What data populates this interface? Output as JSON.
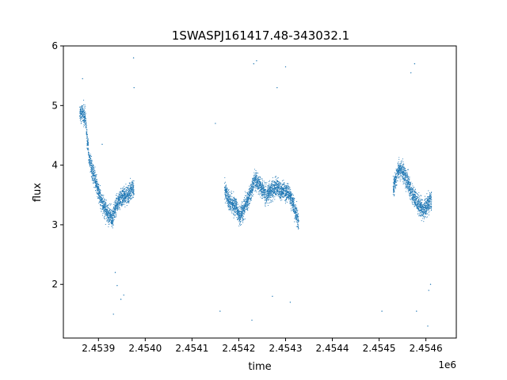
{
  "chart_data": {
    "type": "scatter",
    "title": "1SWASPJ161417.48-343032.1",
    "xlabel": "time",
    "ylabel": "flux",
    "x_offset_label": "1e6",
    "xlim": [
      2453825,
      2454665
    ],
    "ylim": [
      1.1,
      6.0
    ],
    "x_ticks": [
      2453900,
      2454000,
      2454100,
      2454200,
      2454300,
      2454400,
      2454500,
      2454600
    ],
    "x_tick_labels": [
      "2.4539",
      "2.4540",
      "2.4541",
      "2.4542",
      "2.4543",
      "2.4544",
      "2.4545",
      "2.4546"
    ],
    "y_ticks": [
      2,
      3,
      4,
      5,
      6
    ],
    "y_tick_labels": [
      "2",
      "3",
      "4",
      "5",
      "6"
    ],
    "grid": false,
    "legend": "none",
    "marker_color": "#1f77b4",
    "series": [
      {
        "segments": [
          {
            "x": [
              2453860,
              2453866,
              2453872,
              2453880,
              2453886,
              2453893,
              2453900,
              2453906,
              2453912,
              2453918,
              2453924,
              2453930,
              2453936,
              2453942,
              2453948,
              2453954,
              2453960,
              2453966,
              2453972,
              2453976
            ],
            "y": [
              4.85,
              4.88,
              4.8,
              4.1,
              3.92,
              3.78,
              3.55,
              3.4,
              3.3,
              3.22,
              3.15,
              3.1,
              3.3,
              3.38,
              3.45,
              3.5,
              3.48,
              3.55,
              3.6,
              3.58
            ]
          },
          {
            "x": [
              2454170,
              2454178,
              2454186,
              2454194,
              2454202,
              2454210,
              2454218,
              2454226,
              2454234,
              2454242,
              2454250,
              2454258,
              2454266,
              2454274,
              2454282,
              2454290,
              2454298,
              2454306,
              2454314,
              2454322,
              2454328
            ],
            "y": [
              3.6,
              3.42,
              3.35,
              3.3,
              3.15,
              3.25,
              3.4,
              3.55,
              3.75,
              3.7,
              3.6,
              3.5,
              3.55,
              3.6,
              3.65,
              3.55,
              3.6,
              3.52,
              3.4,
              3.2,
              3.05
            ]
          },
          {
            "x": [
              2454530,
              2454540,
              2454548,
              2454556,
              2454564,
              2454572,
              2454580,
              2454588,
              2454596,
              2454604,
              2454612
            ],
            "y": [
              3.6,
              3.9,
              3.95,
              3.8,
              3.65,
              3.5,
              3.4,
              3.3,
              3.25,
              3.35,
              3.4
            ]
          }
        ],
        "outliers": {
          "x": [
            2453866,
            2453908,
            2453948,
            2453954,
            2453932,
            2453936,
            2453940,
            2453975,
            2453976,
            2454150,
            2454160,
            2454228,
            2454232,
            2454238,
            2454272,
            2454282,
            2454300,
            2454310,
            2454506,
            2454568,
            2454576,
            2454580,
            2454604,
            2454606,
            2454610
          ],
          "y": [
            5.45,
            4.35,
            1.75,
            1.82,
            1.5,
            2.2,
            1.98,
            5.8,
            5.3,
            4.7,
            1.55,
            1.4,
            5.7,
            5.75,
            1.8,
            5.3,
            5.65,
            1.7,
            1.55,
            5.55,
            5.7,
            1.55,
            1.3,
            1.9,
            2.0
          ]
        }
      }
    ]
  }
}
